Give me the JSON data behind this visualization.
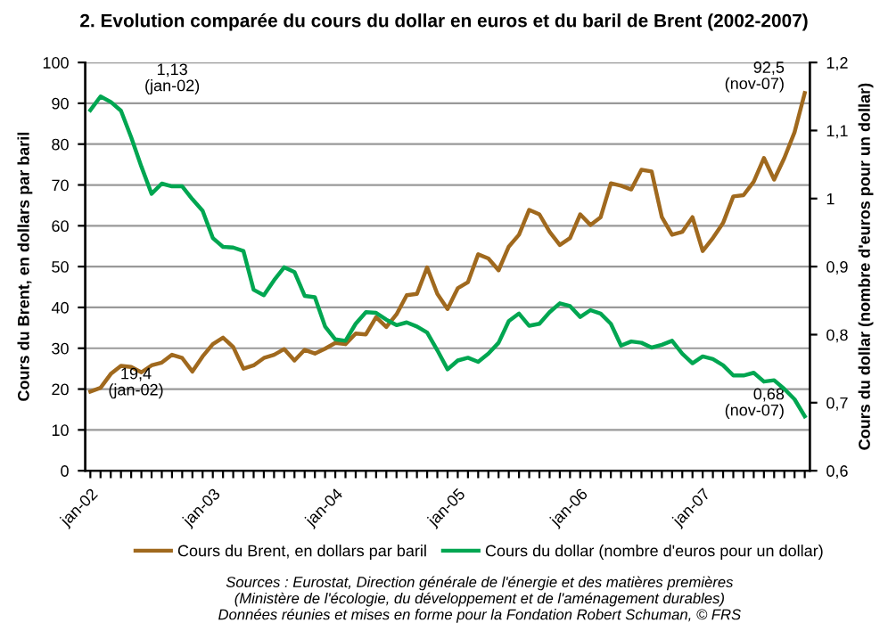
{
  "chart_data": {
    "type": "line",
    "title": "2. Evolution comparée du cours du dollar en euros et du baril de Brent (2002-2007)",
    "ylabel": "Cours du Brent, en dollars par baril",
    "y2label": "Cours du dollar (nombre d'euros pour un dollar)",
    "categories": [
      "jan-02",
      null,
      null,
      null,
      null,
      null,
      null,
      null,
      null,
      null,
      null,
      null,
      "jan-03",
      null,
      null,
      null,
      null,
      null,
      null,
      null,
      null,
      null,
      null,
      null,
      "jan-04",
      null,
      null,
      null,
      null,
      null,
      null,
      null,
      null,
      null,
      null,
      null,
      "jan-05",
      null,
      null,
      null,
      null,
      null,
      null,
      null,
      null,
      null,
      null,
      null,
      "jan-06",
      null,
      null,
      null,
      null,
      null,
      null,
      null,
      null,
      null,
      null,
      null,
      "jan-07",
      null,
      null,
      null,
      null,
      null,
      null,
      null,
      null,
      null,
      null
    ],
    "series": [
      {
        "name": "Cours du Brent, en dollars par baril",
        "color": "#a0691e",
        "values": [
          19.4,
          20.3,
          23.7,
          25.7,
          25.4,
          24.1,
          25.8,
          26.5,
          28.4,
          27.6,
          24.3,
          28.0,
          31.0,
          32.6,
          30.3,
          25.0,
          25.8,
          27.6,
          28.4,
          29.8,
          27.0,
          29.6,
          28.7,
          29.9,
          31.3,
          31.0,
          33.6,
          33.4,
          37.6,
          35.2,
          38.3,
          43.0,
          43.3,
          49.8,
          43.3,
          39.6,
          44.7,
          46.2,
          53.0,
          52.0,
          49.1,
          54.9,
          57.8,
          63.9,
          62.8,
          58.5,
          55.3,
          57.0,
          62.8,
          60.2,
          62.1,
          70.4,
          69.8,
          68.9,
          73.7,
          73.3,
          62.1,
          57.8,
          58.5,
          62.1,
          53.8,
          57.0,
          60.7,
          67.2,
          67.5,
          70.8,
          76.6,
          71.3,
          76.6,
          82.9,
          92.5
        ]
      },
      {
        "name": "Cours du dollar (nombre d'euros pour un dollar)",
        "color": "#00a651",
        "axis": "y2",
        "values": [
          1.13,
          1.15,
          1.142,
          1.129,
          1.09,
          1.047,
          1.007,
          1.022,
          1.018,
          1.018,
          0.999,
          0.982,
          0.942,
          0.929,
          0.928,
          0.923,
          0.866,
          0.858,
          0.88,
          0.899,
          0.892,
          0.857,
          0.855,
          0.812,
          0.793,
          0.791,
          0.816,
          0.833,
          0.832,
          0.822,
          0.814,
          0.818,
          0.812,
          0.803,
          0.777,
          0.749,
          0.762,
          0.766,
          0.76,
          0.772,
          0.788,
          0.82,
          0.831,
          0.813,
          0.816,
          0.833,
          0.846,
          0.842,
          0.826,
          0.836,
          0.831,
          0.816,
          0.784,
          0.79,
          0.788,
          0.781,
          0.785,
          0.791,
          0.772,
          0.758,
          0.768,
          0.764,
          0.755,
          0.74,
          0.74,
          0.744,
          0.731,
          0.733,
          0.72,
          0.705,
          0.68
        ]
      }
    ],
    "ylim": [
      0,
      100
    ],
    "yticks": [
      0,
      10,
      20,
      30,
      40,
      50,
      60,
      70,
      80,
      90,
      100
    ],
    "y2lim": [
      0.6,
      1.2
    ],
    "y2ticks": [
      {
        "value": 0.6,
        "label": "0,6"
      },
      {
        "value": 0.7,
        "label": "0,7"
      },
      {
        "value": 0.8,
        "label": "0,8"
      },
      {
        "value": 0.9,
        "label": "0,9"
      },
      {
        "value": 1,
        "label": "1"
      },
      {
        "value": 1.1,
        "label": "1,1"
      },
      {
        "value": 1.2,
        "label": "1,2"
      }
    ],
    "grid": "y",
    "legend": "bottom",
    "marker": "none",
    "line_style": "solid",
    "annotations": [
      "1,13\n(jan-02)",
      "19,4\n(jan-02)",
      "92,5\n(nov-07)",
      "0,68\n(nov-07)",
      "Sources : Eurostat, Direction générale de l'énergie et des matières premières\n(Ministère de l'écologie, du développement et de l'aménagement durables)\nDonnées réunies et mises en forme pour la Fondation Robert Schuman, © FRS"
    ]
  }
}
